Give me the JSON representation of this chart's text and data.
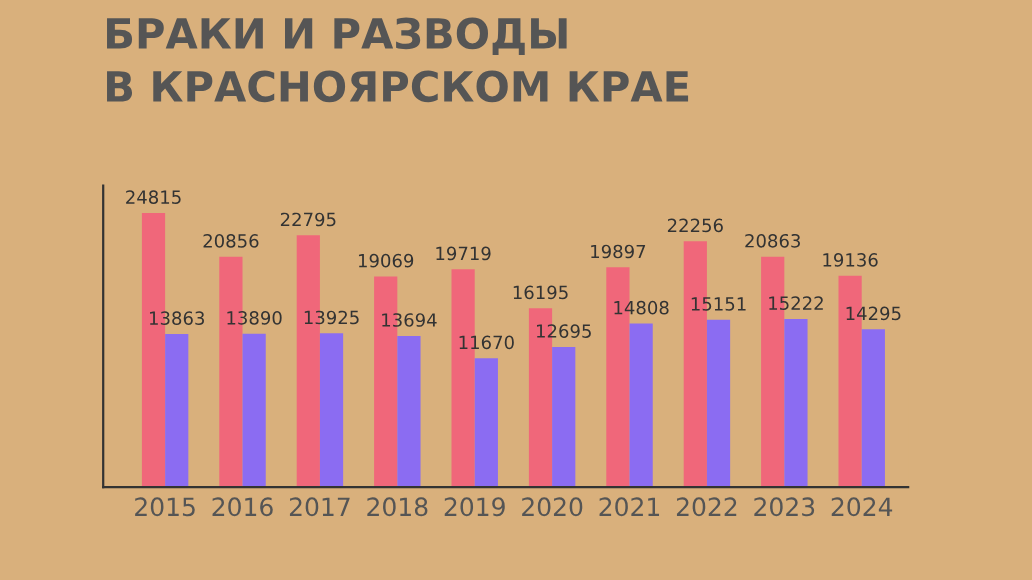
{
  "chart_data": {
    "type": "bar",
    "title": "БРАКИ И РАЗВОДЫ\nВ КРАСНОЯРСКОМ КРАЕ",
    "categories": [
      "2015",
      "2016",
      "2017",
      "2018",
      "2019",
      "2020",
      "2021",
      "2022",
      "2023",
      "2024"
    ],
    "series": [
      {
        "color": "#f0677a",
        "values": [
          24815,
          20856,
          22795,
          19069,
          19719,
          16195,
          19897,
          22256,
          20863,
          19136
        ]
      },
      {
        "color": "#8b6cf2",
        "values": [
          13863,
          13890,
          13925,
          13694,
          11670,
          12695,
          14808,
          15151,
          15222,
          14295
        ]
      }
    ],
    "data_labels": true,
    "tick_labels": "x",
    "grid": false,
    "legend": false
  }
}
